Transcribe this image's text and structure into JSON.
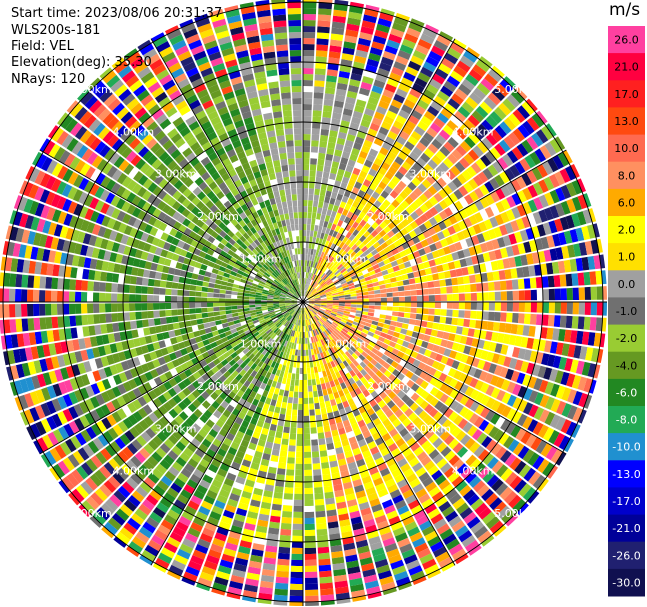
{
  "header": {
    "start_time": "Start time: 2023/08/06 20:31:37",
    "instrument": "WLS200s-181",
    "field": "Field: VEL",
    "elevation": "Elevation(deg): 35.30",
    "nrays": "NRays: 120"
  },
  "chart_data": {
    "type": "heatmap",
    "subtype": "polar-ppi",
    "title": "",
    "field": "VEL",
    "unit": "m/s",
    "nrays": 120,
    "elevation_deg": 35.3,
    "range_km": [
      0,
      5.7
    ],
    "range_rings_km": [
      1,
      2,
      3,
      4,
      5
    ],
    "range_ring_labels": [
      "1.00km",
      "2.00km",
      "3.00km",
      "4.00km",
      "5.00km"
    ],
    "spoke_angles_deg": [
      0,
      30,
      60,
      90,
      120,
      150,
      180,
      210,
      240,
      270,
      300,
      330
    ],
    "color_scale": {
      "labels": [
        "26.0",
        "21.0",
        "17.0",
        "13.0",
        "10.0",
        "8.0",
        "6.0",
        "2.0",
        "1.0",
        "0.0",
        "-1.0",
        "-2.0",
        "-4.0",
        "-6.0",
        "-8.0",
        "-10.0",
        "-13.0",
        "-17.0",
        "-21.0",
        "-26.0",
        "-30.0"
      ],
      "colors": [
        "#ff40a0",
        "#ff0040",
        "#ff2020",
        "#ff4a10",
        "#ff6a50",
        "#ff9060",
        "#ffaa00",
        "#ffff00",
        "#ffe000",
        "#a0a0a0",
        "#707070",
        "#99cc33",
        "#669922",
        "#228822",
        "#22aa55",
        "#2090d0",
        "#0000ff",
        "#0000cc",
        "#000099",
        "#202070",
        "#101050"
      ],
      "label_colors": [
        "#000000",
        "#000000",
        "#000000",
        "#000000",
        "#000000",
        "#000000",
        "#000000",
        "#000000",
        "#000000",
        "#000000",
        "#000000",
        "#000000",
        "#000000",
        "#ffffff",
        "#ffffff",
        "#ffffff",
        "#ffffff",
        "#ffffff",
        "#ffffff",
        "#ffffff",
        "#ffffff"
      ]
    },
    "data_summary": {
      "near_range_east_sector": "positive velocities 1 to 6 m/s (yellow/orange)",
      "near_range_west_sector": "negative velocities -2 to -6 m/s (green)",
      "beyond_4km": "noisy values spanning full scale"
    }
  }
}
